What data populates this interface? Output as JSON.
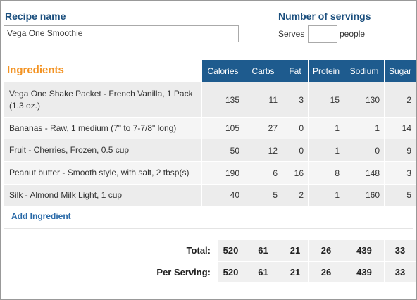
{
  "recipe": {
    "name_label": "Recipe name",
    "name_value": "Vega One Smoothie",
    "servings_label": "Number of servings",
    "serves_prefix": "Serves",
    "serves_value": "",
    "serves_suffix": "people"
  },
  "table": {
    "title": "Ingredients",
    "columns": [
      "Calories",
      "Carbs",
      "Fat",
      "Protein",
      "Sodium",
      "Sugar"
    ],
    "rows": [
      {
        "name": "Vega One Shake Packet - French Vanilla, 1 Pack (1.3 oz.)",
        "values": [
          135,
          11,
          3,
          15,
          130,
          2
        ]
      },
      {
        "name": "Bananas - Raw, 1 medium (7\" to 7-7/8\" long)",
        "values": [
          105,
          27,
          0,
          1,
          1,
          14
        ]
      },
      {
        "name": "Fruit - Cherries, Frozen, 0.5 cup",
        "values": [
          50,
          12,
          0,
          1,
          0,
          9
        ]
      },
      {
        "name": "Peanut butter - Smooth style, with salt, 2 tbsp(s)",
        "values": [
          190,
          6,
          16,
          8,
          148,
          3
        ]
      },
      {
        "name": "Silk - Almond Milk Light, 1 cup",
        "values": [
          40,
          5,
          2,
          1,
          160,
          5
        ]
      }
    ],
    "add_link": "Add Ingredient",
    "totals": [
      {
        "label": "Total:",
        "values": [
          520,
          61,
          21,
          26,
          439,
          33
        ]
      },
      {
        "label": "Per Serving:",
        "values": [
          520,
          61,
          21,
          26,
          439,
          33
        ]
      }
    ]
  }
}
